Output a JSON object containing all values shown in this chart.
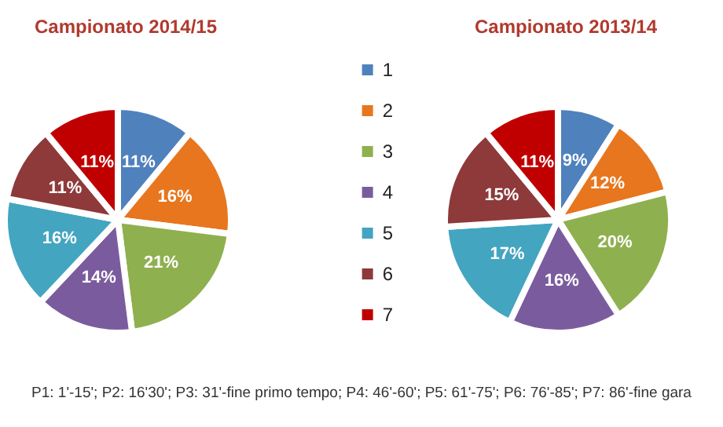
{
  "chart_data": [
    {
      "type": "pie",
      "title": "Campionato 2014/15",
      "categories": [
        "1",
        "2",
        "3",
        "4",
        "5",
        "6",
        "7"
      ],
      "values": [
        11,
        16,
        21,
        14,
        16,
        11,
        11
      ],
      "value_labels": [
        "11%",
        "16%",
        "21%",
        "14%",
        "16%",
        "11%",
        "11%"
      ],
      "colors": [
        "#4f81bd",
        "#e8761e",
        "#8fb04f",
        "#7a5c9e",
        "#43a5c0",
        "#8e3a3a",
        "#c00000"
      ],
      "legend": "right",
      "annotations": [
        "P1: 1'-15'; P2: 16'30'; P3: 31'-fine primo tempo; P4: 46'-60'; P5: 61'-75'; P6: 76'-85'; P7: 86'-fine gara"
      ]
    },
    {
      "type": "pie",
      "title": "Campionato 2013/14",
      "categories": [
        null,
        null,
        null,
        null,
        null,
        null,
        null
      ],
      "values": [
        9,
        12,
        20,
        16,
        17,
        15,
        11
      ],
      "value_labels": [
        "9%",
        "12%",
        "20%",
        "16%",
        "17%",
        "15%",
        "11%"
      ],
      "colors": [
        "#4f81bd",
        "#e8761e",
        "#8fb04f",
        "#7a5c9e",
        "#43a5c0",
        "#8e3a3a",
        "#c00000"
      ]
    }
  ]
}
